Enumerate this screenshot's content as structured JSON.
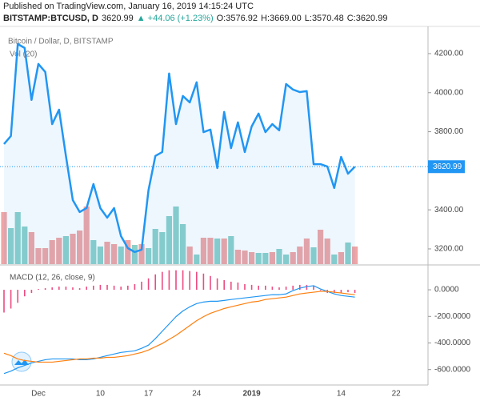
{
  "header": {
    "published": "Published on TradingView.com, January 16, 2019 14:15:24 UTC",
    "symbol": "BITSTAMP:BTCUSD, D",
    "price": "3620.99",
    "change": "▲ +44.06 (+1.23%)",
    "ohlc": [
      "O:3576.92",
      "H:3669.00",
      "L:3570.48",
      "C:3620.99"
    ]
  },
  "chart_data": [
    {
      "type": "line",
      "title": "Bitcoin / Dollar, D, BITSTAMP",
      "color": "#2196f3",
      "categories": [
        null,
        null,
        null,
        null,
        null,
        "Dec",
        null,
        null,
        null,
        null,
        null,
        null,
        null,
        null,
        "10",
        null,
        null,
        null,
        null,
        null,
        null,
        "17",
        null,
        null,
        null,
        null,
        null,
        null,
        "24",
        null,
        null,
        null,
        null,
        null,
        null,
        null,
        "2019",
        null,
        null,
        null,
        null,
        null,
        null,
        null,
        null,
        null,
        null,
        null,
        null,
        "14",
        null,
        null,
        null,
        null,
        null,
        null,
        null,
        "22",
        null,
        null,
        null,
        null
      ],
      "values": [
        3737,
        3778,
        4249,
        4229,
        3963,
        4147,
        4106,
        3839,
        3913,
        3676,
        3450,
        3389,
        3409,
        3532,
        3409,
        3360,
        3409,
        3266,
        3204,
        3184,
        3196,
        3500,
        3676,
        3696,
        4098,
        3839,
        3983,
        3950,
        4053,
        3798,
        3811,
        3614,
        3901,
        3716,
        3848,
        3696,
        3827,
        3893,
        3798,
        3839,
        3807,
        4044,
        4016,
        4003,
        4008,
        3634,
        3634,
        3622,
        3512,
        3671,
        3585,
        3620.99,
        null,
        null,
        null,
        null,
        null,
        null,
        null,
        null,
        null,
        null
      ],
      "last_label": "3620.99",
      "ylim": [
        3122,
        4331
      ],
      "yticks": [
        {
          "value": 3200,
          "label": "3200.00"
        },
        {
          "value": 3400,
          "label": "3400.00"
        },
        {
          "value": 3600,
          "label": "3600.00"
        },
        {
          "value": 3800,
          "label": "3800.00"
        },
        {
          "value": 4000,
          "label": "4000.00"
        },
        {
          "value": 4200,
          "label": "4200.00"
        }
      ],
      "volume": {
        "label": "Vol (20)",
        "vlim": [
          0,
          100
        ],
        "values": [
          65,
          45,
          65,
          47,
          40,
          20,
          20,
          30,
          33,
          35,
          38,
          42,
          72,
          30,
          22,
          28,
          25,
          22,
          30,
          24,
          25,
          20,
          44,
          40,
          60,
          72,
          50,
          22,
          12,
          33,
          33,
          32,
          32,
          35,
          18,
          17,
          15,
          14,
          14,
          15,
          19,
          12,
          15,
          22,
          32,
          21,
          43,
          32,
          12,
          15,
          27,
          22,
          null,
          null,
          null,
          null,
          null,
          null,
          null,
          null,
          null,
          null
        ],
        "colors": [
          "#ef9a9a",
          "#80cbc4",
          "#80cbc4",
          "#80cbc4",
          "#ef9a9a",
          "#ef9a9a",
          "#ef9a9a",
          "#ef9a9a",
          "#ef9a9a",
          "#80cbc4",
          "#ef9a9a",
          "#ef9a9a",
          "#ef9a9a",
          "#80cbc4",
          "#80cbc4",
          "#ef9a9a",
          "#ef9a9a",
          "#80cbc4",
          "#ef9a9a",
          "#80cbc4",
          "#ef9a9a",
          "#80cbc4",
          "#80cbc4",
          "#80cbc4",
          "#80cbc4",
          "#80cbc4",
          "#80cbc4",
          "#ef9a9a",
          "#80cbc4",
          "#ef9a9a",
          "#ef9a9a",
          "#80cbc4",
          "#ef9a9a",
          "#80cbc4",
          "#ef9a9a",
          "#ef9a9a",
          "#ef9a9a",
          "#80cbc4",
          "#80cbc4",
          "#ef9a9a",
          "#80cbc4",
          "#80cbc4",
          "#ef9a9a",
          "#ef9a9a",
          "#ef9a9a",
          "#80cbc4",
          "#ef9a9a",
          "#ef9a9a",
          "#80cbc4",
          "#ef9a9a",
          "#80cbc4",
          "#ef9a9a",
          null,
          null,
          null,
          null,
          null,
          null,
          null,
          null,
          null,
          null
        ]
      }
    },
    {
      "type": "line",
      "title": "MACD (12, 26, close, 9)",
      "ylim": [
        -710,
        175
      ],
      "yticks": [
        {
          "value": 0,
          "label": "0.0000"
        },
        {
          "value": -200,
          "label": "-200.0000"
        },
        {
          "value": -400,
          "label": "-400.0000"
        },
        {
          "value": -600,
          "label": "-600.0000"
        }
      ],
      "histogram": {
        "color": "#e91e63",
        "values": [
          -171,
          -141,
          -98,
          -49,
          -24,
          6,
          12,
          18,
          24,
          24,
          18,
          12,
          24,
          31,
          37,
          37,
          31,
          24,
          31,
          43,
          61,
          86,
          116,
          135,
          147,
          147,
          147,
          141,
          135,
          122,
          104,
          86,
          73,
          61,
          55,
          43,
          37,
          31,
          31,
          24,
          18,
          24,
          31,
          37,
          37,
          31,
          -6,
          -24,
          -24,
          -24,
          -18,
          -24,
          null,
          null,
          null,
          null,
          null,
          null,
          null,
          null,
          null,
          null
        ]
      },
      "series": [
        {
          "color": "#2196f3",
          "values": [
            -630,
            -612,
            -587,
            -569,
            -550,
            -538,
            -526,
            -520,
            -520,
            -520,
            -520,
            -526,
            -526,
            -520,
            -508,
            -495,
            -483,
            -471,
            -465,
            -459,
            -440,
            -416,
            -367,
            -312,
            -257,
            -202,
            -159,
            -128,
            -104,
            -92,
            -86,
            -86,
            -80,
            -73,
            -67,
            -61,
            -55,
            -49,
            -43,
            -37,
            -37,
            -31,
            -6,
            12,
            24,
            31,
            6,
            -12,
            -31,
            -43,
            -49,
            -55,
            null,
            null,
            null,
            null,
            null,
            null,
            null,
            null,
            null,
            null
          ]
        },
        {
          "color": "#ff7f0e",
          "values": [
            -477,
            -495,
            -520,
            -532,
            -538,
            -544,
            -544,
            -544,
            -538,
            -532,
            -526,
            -520,
            -520,
            -514,
            -514,
            -508,
            -508,
            -502,
            -495,
            -483,
            -471,
            -453,
            -428,
            -404,
            -373,
            -343,
            -306,
            -269,
            -232,
            -202,
            -177,
            -159,
            -141,
            -128,
            -116,
            -104,
            -92,
            -86,
            -73,
            -67,
            -61,
            -55,
            -43,
            -31,
            -24,
            -18,
            -12,
            -12,
            -18,
            -24,
            -31,
            -37,
            null,
            null,
            null,
            null,
            null,
            null,
            null,
            null,
            null,
            null
          ]
        }
      ]
    }
  ]
}
